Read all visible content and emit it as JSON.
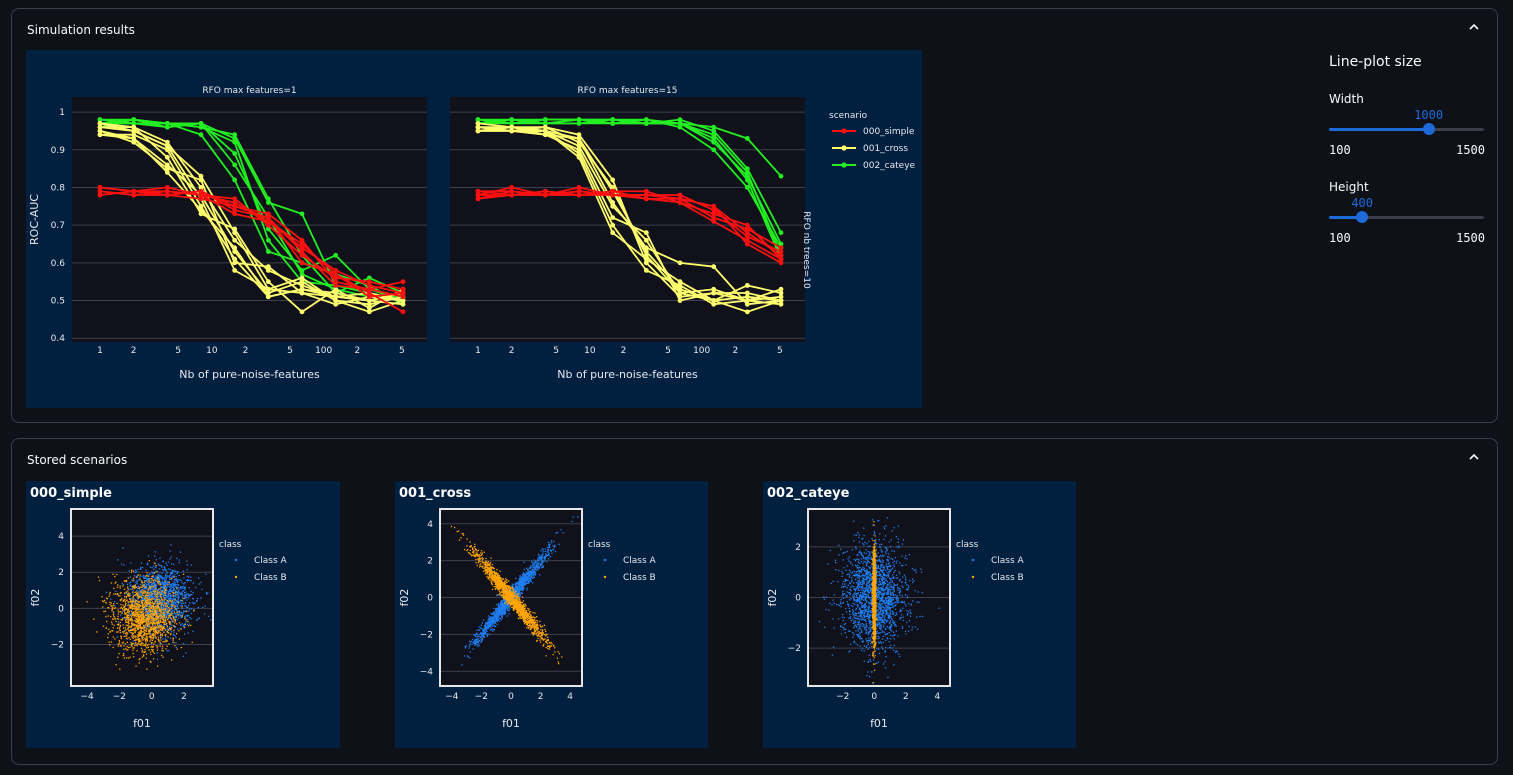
{
  "colors": {
    "page_bg": "#0f1118",
    "panel_bg": "#012040",
    "plot_bg": "#10111a",
    "accent": "#1e6ad8",
    "simple": "#ff1010",
    "cross": "#ffff6e",
    "cateye": "#22ee22",
    "class_a": "#1e7ef2",
    "class_b": "#ffa500"
  },
  "simulation": {
    "header": "Simulation results",
    "chevron_icon": "chevron-up-icon"
  },
  "controls": {
    "title": "Line-plot size",
    "width": {
      "label": "Width",
      "value": "1000",
      "min": "100",
      "max": "1500",
      "fraction": 0.643
    },
    "height": {
      "label": "Height",
      "value": "400",
      "min": "100",
      "max": "1500",
      "fraction": 0.214
    }
  },
  "stored": {
    "header": "Stored scenarios",
    "chevron_icon": "chevron-up-icon"
  },
  "chart_data": [
    {
      "type": "line",
      "subtitles": [
        "RFO max features=1",
        "RFO max features=15"
      ],
      "facet_row_label": "RFO nb trees=10",
      "xlabel": "Nb of pure-noise-features",
      "ylabel": "ROC-AUC",
      "xscale": "log",
      "x_ticks": [
        "1",
        "2",
        "5",
        "10",
        "2",
        "5",
        "100",
        "2",
        "5"
      ],
      "y_ticks": [
        "0.4",
        "0.5",
        "0.6",
        "0.7",
        "0.8",
        "0.9",
        "1"
      ],
      "ylim": [
        0.39,
        1.04
      ],
      "legend_title": "scenario",
      "legend_entries": [
        "000_simple",
        "001_cross",
        "002_cateye"
      ],
      "x": [
        1,
        2,
        4,
        8,
        16,
        32,
        64,
        128,
        256,
        512
      ],
      "panels": [
        {
          "title": "RFO max features=1",
          "series": [
            {
              "name": "000_simple",
              "runs": [
                [
                  0.8,
                  0.79,
                  0.79,
                  0.78,
                  0.76,
                  0.71,
                  0.64,
                  0.58,
                  0.54,
                  0.52
                ],
                [
                  0.79,
                  0.78,
                  0.78,
                  0.77,
                  0.75,
                  0.73,
                  0.66,
                  0.55,
                  0.53,
                  0.51
                ],
                [
                  0.78,
                  0.79,
                  0.78,
                  0.79,
                  0.74,
                  0.72,
                  0.6,
                  0.57,
                  0.52,
                  0.47
                ],
                [
                  0.79,
                  0.78,
                  0.79,
                  0.78,
                  0.77,
                  0.7,
                  0.62,
                  0.56,
                  0.55,
                  0.53
                ],
                [
                  0.8,
                  0.79,
                  0.78,
                  0.79,
                  0.75,
                  0.72,
                  0.63,
                  0.54,
                  0.53,
                  0.55
                ],
                [
                  0.78,
                  0.79,
                  0.8,
                  0.78,
                  0.73,
                  0.71,
                  0.65,
                  0.57,
                  0.51,
                  0.52
                ]
              ]
            },
            {
              "name": "001_cross",
              "runs": [
                [
                  0.96,
                  0.95,
                  0.91,
                  0.83,
                  0.68,
                  0.53,
                  0.52,
                  0.51,
                  0.5,
                  0.52
                ],
                [
                  0.97,
                  0.96,
                  0.92,
                  0.8,
                  0.66,
                  0.58,
                  0.54,
                  0.51,
                  0.52,
                  0.5
                ],
                [
                  0.95,
                  0.93,
                  0.86,
                  0.78,
                  0.63,
                  0.52,
                  0.55,
                  0.5,
                  0.49,
                  0.51
                ],
                [
                  0.94,
                  0.94,
                  0.9,
                  0.75,
                  0.61,
                  0.51,
                  0.53,
                  0.52,
                  0.5,
                  0.49
                ],
                [
                  0.96,
                  0.96,
                  0.88,
                  0.73,
                  0.69,
                  0.55,
                  0.47,
                  0.53,
                  0.48,
                  0.53
                ],
                [
                  0.95,
                  0.92,
                  0.85,
                  0.82,
                  0.6,
                  0.59,
                  0.52,
                  0.49,
                  0.51,
                  0.5
                ],
                [
                  0.97,
                  0.95,
                  0.91,
                  0.77,
                  0.58,
                  0.53,
                  0.56,
                  0.5,
                  0.47,
                  0.5
                ],
                [
                  0.94,
                  0.93,
                  0.84,
                  0.74,
                  0.64,
                  0.51,
                  0.53,
                  0.51,
                  0.5,
                  0.52
                ]
              ]
            },
            {
              "name": "002_cateye",
              "runs": [
                [
                  0.98,
                  0.98,
                  0.97,
                  0.97,
                  0.93,
                  0.76,
                  0.73,
                  0.54,
                  0.53,
                  0.51
                ],
                [
                  0.97,
                  0.98,
                  0.97,
                  0.96,
                  0.94,
                  0.77,
                  0.62,
                  0.52,
                  0.56,
                  0.52
                ],
                [
                  0.98,
                  0.97,
                  0.96,
                  0.97,
                  0.89,
                  0.69,
                  0.58,
                  0.62,
                  0.53,
                  0.5
                ],
                [
                  0.97,
                  0.97,
                  0.97,
                  0.94,
                  0.82,
                  0.63,
                  0.6,
                  0.57,
                  0.54,
                  0.49
                ],
                [
                  0.96,
                  0.98,
                  0.96,
                  0.97,
                  0.86,
                  0.72,
                  0.57,
                  0.53,
                  0.51,
                  0.51
                ],
                [
                  0.97,
                  0.97,
                  0.97,
                  0.96,
                  0.92,
                  0.66,
                  0.55,
                  0.54,
                  0.52,
                  0.5
                ]
              ]
            }
          ]
        },
        {
          "title": "RFO max features=15",
          "series": [
            {
              "name": "000_simple",
              "runs": [
                [
                  0.78,
                  0.8,
                  0.78,
                  0.79,
                  0.78,
                  0.78,
                  0.77,
                  0.75,
                  0.68,
                  0.62
                ],
                [
                  0.77,
                  0.78,
                  0.78,
                  0.78,
                  0.79,
                  0.77,
                  0.76,
                  0.73,
                  0.7,
                  0.61
                ],
                [
                  0.79,
                  0.79,
                  0.78,
                  0.8,
                  0.78,
                  0.78,
                  0.78,
                  0.74,
                  0.67,
                  0.63
                ],
                [
                  0.78,
                  0.78,
                  0.79,
                  0.78,
                  0.79,
                  0.79,
                  0.76,
                  0.71,
                  0.66,
                  0.61
                ],
                [
                  0.77,
                  0.79,
                  0.78,
                  0.79,
                  0.78,
                  0.77,
                  0.77,
                  0.72,
                  0.69,
                  0.64
                ],
                [
                  0.79,
                  0.78,
                  0.79,
                  0.78,
                  0.78,
                  0.78,
                  0.77,
                  0.75,
                  0.65,
                  0.6
                ]
              ]
            },
            {
              "name": "001_cross",
              "runs": [
                [
                  0.96,
                  0.96,
                  0.96,
                  0.94,
                  0.82,
                  0.6,
                  0.51,
                  0.52,
                  0.5,
                  0.51
                ],
                [
                  0.95,
                  0.95,
                  0.95,
                  0.93,
                  0.79,
                  0.63,
                  0.53,
                  0.5,
                  0.51,
                  0.5
                ],
                [
                  0.96,
                  0.95,
                  0.95,
                  0.91,
                  0.75,
                  0.66,
                  0.52,
                  0.53,
                  0.5,
                  0.49
                ],
                [
                  0.95,
                  0.96,
                  0.94,
                  0.9,
                  0.72,
                  0.68,
                  0.5,
                  0.52,
                  0.52,
                  0.5
                ],
                [
                  0.97,
                  0.96,
                  0.95,
                  0.89,
                  0.7,
                  0.58,
                  0.54,
                  0.49,
                  0.5,
                  0.53
                ],
                [
                  0.96,
                  0.95,
                  0.96,
                  0.92,
                  0.8,
                  0.62,
                  0.52,
                  0.5,
                  0.54,
                  0.52
                ],
                [
                  0.95,
                  0.96,
                  0.95,
                  0.88,
                  0.68,
                  0.61,
                  0.55,
                  0.5,
                  0.47,
                  0.5
                ],
                [
                  0.96,
                  0.95,
                  0.94,
                  0.93,
                  0.76,
                  0.64,
                  0.6,
                  0.59,
                  0.49,
                  0.5
                ]
              ]
            },
            {
              "name": "002_cateye",
              "runs": [
                [
                  0.98,
                  0.98,
                  0.98,
                  0.98,
                  0.98,
                  0.98,
                  0.97,
                  0.96,
                  0.93,
                  0.83
                ],
                [
                  0.97,
                  0.97,
                  0.98,
                  0.98,
                  0.97,
                  0.97,
                  0.98,
                  0.95,
                  0.85,
                  0.68
                ],
                [
                  0.97,
                  0.98,
                  0.97,
                  0.97,
                  0.98,
                  0.97,
                  0.97,
                  0.92,
                  0.83,
                  0.65
                ],
                [
                  0.98,
                  0.97,
                  0.98,
                  0.98,
                  0.97,
                  0.98,
                  0.96,
                  0.9,
                  0.8,
                  0.64
                ],
                [
                  0.97,
                  0.98,
                  0.97,
                  0.97,
                  0.97,
                  0.97,
                  0.97,
                  0.94,
                  0.84,
                  0.62
                ],
                [
                  0.98,
                  0.97,
                  0.97,
                  0.98,
                  0.98,
                  0.97,
                  0.97,
                  0.93,
                  0.82,
                  0.61
                ]
              ]
            }
          ]
        }
      ]
    },
    {
      "type": "scatter",
      "title": "000_simple",
      "xlabel": "f01",
      "ylabel": "f02",
      "x_ticks": [
        "−4",
        "−2",
        "0",
        "2"
      ],
      "y_ticks": [
        "−2",
        "0",
        "2",
        "4"
      ],
      "xlim": [
        -5,
        3.8
      ],
      "ylim": [
        -4.3,
        5.5
      ],
      "legend_title": "class",
      "legend_entries": [
        "Class A",
        "Class B"
      ],
      "series": [
        {
          "name": "Class A",
          "distribution": "gaussian",
          "mean": [
            0.5,
            0.5
          ],
          "std": [
            1.0,
            1.0
          ],
          "n": 1500
        },
        {
          "name": "Class B",
          "distribution": "gaussian",
          "mean": [
            -0.5,
            -0.5
          ],
          "std": [
            1.0,
            1.0
          ],
          "n": 1500
        }
      ]
    },
    {
      "type": "scatter",
      "title": "001_cross",
      "xlabel": "f01",
      "ylabel": "f02",
      "x_ticks": [
        "−4",
        "−2",
        "0",
        "2",
        "4"
      ],
      "y_ticks": [
        "−4",
        "−2",
        "0",
        "2",
        "4"
      ],
      "xlim": [
        -4.8,
        4.8
      ],
      "ylim": [
        -4.8,
        4.8
      ],
      "legend_title": "class",
      "legend_entries": [
        "Class A",
        "Class B"
      ],
      "series": [
        {
          "name": "Class A",
          "distribution": "diagonal",
          "slope": 1,
          "spread": 1.2,
          "noise": 0.18,
          "n": 1500
        },
        {
          "name": "Class B",
          "distribution": "diagonal",
          "slope": -1,
          "spread": 1.2,
          "noise": 0.18,
          "n": 1500
        }
      ]
    },
    {
      "type": "scatter",
      "title": "002_cateye",
      "xlabel": "f01",
      "ylabel": "f02",
      "x_ticks": [
        "−2",
        "0",
        "2",
        "4"
      ],
      "y_ticks": [
        "−2",
        "0",
        "2"
      ],
      "xlim": [
        -4.2,
        4.8
      ],
      "ylim": [
        -3.5,
        3.5
      ],
      "legend_title": "class",
      "legend_entries": [
        "Class A",
        "Class B"
      ],
      "series": [
        {
          "name": "Class A",
          "distribution": "gaussian",
          "mean": [
            0,
            0
          ],
          "std": [
            1.0,
            1.0
          ],
          "n": 1800
        },
        {
          "name": "Class B",
          "distribution": "gaussian",
          "mean": [
            0,
            0
          ],
          "std": [
            0.05,
            0.9
          ],
          "n": 1200
        }
      ]
    }
  ]
}
